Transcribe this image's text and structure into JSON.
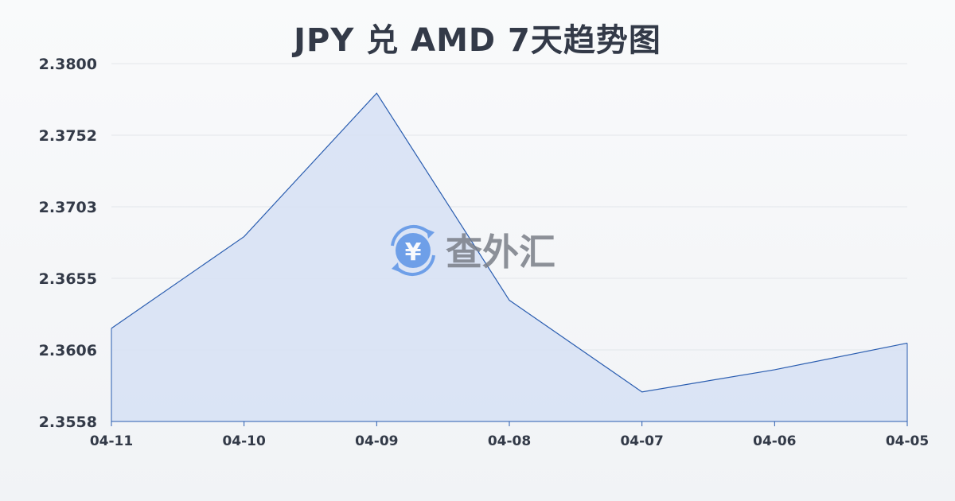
{
  "chart_data": {
    "type": "area",
    "title": "JPY 兑 AMD 7天趋势图",
    "xlabel": "",
    "ylabel": "",
    "categories": [
      "04-11",
      "04-10",
      "04-09",
      "04-08",
      "04-07",
      "04-06",
      "04-05"
    ],
    "series": [
      {
        "values": [
          2.3621,
          2.3683,
          2.378,
          2.364,
          2.3578,
          2.3593,
          2.3611
        ]
      }
    ],
    "yticks": [
      "2.3800",
      "2.3752",
      "2.3703",
      "2.3655",
      "2.3606",
      "2.3558"
    ],
    "ylim": [
      2.3558,
      2.38
    ],
    "grid": true,
    "colors": {
      "line": "#2a5db0",
      "fill": "#d6e0f4",
      "grid": "#e3e6ea",
      "text": "#333a48"
    }
  },
  "watermark": {
    "icon": "yen-exchange-icon",
    "text": "查外汇",
    "color": "#5b93e6"
  }
}
